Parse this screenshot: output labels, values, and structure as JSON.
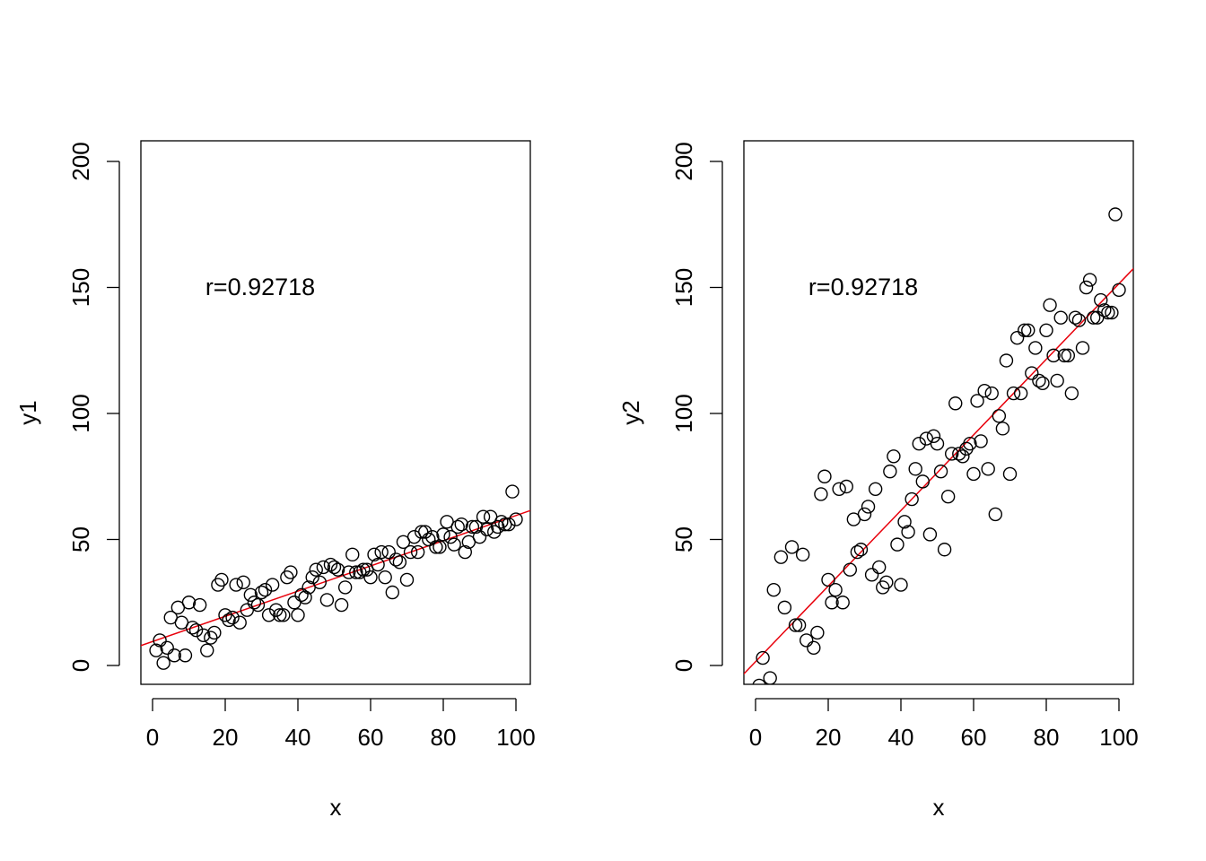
{
  "chart_data": [
    {
      "type": "scatter",
      "xlabel": "x",
      "ylabel": "y1",
      "xlim": [
        0,
        100
      ],
      "ylim": [
        0,
        200
      ],
      "xticks": [
        "0",
        "20",
        "40",
        "60",
        "80",
        "100"
      ],
      "yticks": [
        "0",
        "50",
        "100",
        "150",
        "200"
      ],
      "annotation": "r=0.92718",
      "fit_line": {
        "intercept": 9.5,
        "slope": 0.5,
        "color": "#e8000b"
      },
      "marker": "open-circle",
      "points": {
        "x": [
          1,
          2,
          3,
          4,
          5,
          6,
          7,
          8,
          9,
          10,
          11,
          12,
          13,
          14,
          15,
          16,
          17,
          18,
          19,
          20,
          21,
          22,
          23,
          24,
          25,
          26,
          27,
          28,
          29,
          30,
          31,
          32,
          33,
          34,
          35,
          36,
          37,
          38,
          39,
          40,
          41,
          42,
          43,
          44,
          45,
          46,
          47,
          48,
          49,
          50,
          51,
          52,
          53,
          54,
          55,
          56,
          57,
          58,
          59,
          60,
          61,
          62,
          63,
          64,
          65,
          66,
          67,
          68,
          69,
          70,
          71,
          72,
          73,
          74,
          75,
          76,
          77,
          78,
          79,
          80,
          81,
          82,
          83,
          84,
          85,
          86,
          87,
          88,
          89,
          90,
          91,
          92,
          93,
          94,
          95,
          96,
          97,
          98,
          99,
          100
        ],
        "y": [
          6,
          10,
          1,
          7,
          19,
          4,
          23,
          17,
          4,
          25,
          15,
          14,
          24,
          12,
          6,
          11,
          13,
          32,
          34,
          20,
          18,
          19,
          32,
          17,
          33,
          22,
          28,
          25,
          24,
          29,
          30,
          20,
          32,
          22,
          20,
          20,
          35,
          37,
          25,
          20,
          28,
          27,
          31,
          35,
          38,
          33,
          39,
          26,
          40,
          39,
          38,
          24,
          31,
          37,
          44,
          37,
          37,
          38,
          38,
          35,
          44,
          40,
          45,
          35,
          45,
          29,
          42,
          41,
          49,
          34,
          45,
          51,
          45,
          53,
          53,
          50,
          51,
          47,
          47,
          52,
          57,
          51,
          48,
          55,
          56,
          45,
          49,
          55,
          55,
          51,
          59,
          54,
          59,
          53,
          55,
          57,
          56,
          56,
          69,
          58
        ]
      }
    },
    {
      "type": "scatter",
      "xlabel": "x",
      "ylabel": "y2",
      "xlim": [
        0,
        100
      ],
      "ylim": [
        0,
        200
      ],
      "xticks": [
        "0",
        "20",
        "40",
        "60",
        "80",
        "100"
      ],
      "yticks": [
        "0",
        "50",
        "100",
        "150",
        "200"
      ],
      "annotation": "r=0.92718",
      "fit_line": {
        "intercept": 1.5,
        "slope": 1.5,
        "color": "#e8000b"
      },
      "marker": "open-circle",
      "points": {
        "x": [
          1,
          2,
          4,
          5,
          7,
          8,
          10,
          11,
          12,
          13,
          14,
          16,
          17,
          18,
          19,
          20,
          21,
          22,
          23,
          24,
          25,
          26,
          27,
          28,
          29,
          30,
          31,
          32,
          33,
          34,
          35,
          36,
          37,
          38,
          39,
          40,
          41,
          42,
          43,
          44,
          45,
          46,
          47,
          48,
          49,
          50,
          51,
          52,
          53,
          54,
          55,
          56,
          57,
          58,
          59,
          60,
          61,
          62,
          63,
          64,
          65,
          66,
          67,
          68,
          69,
          70,
          71,
          72,
          73,
          74,
          75,
          76,
          77,
          78,
          79,
          80,
          81,
          82,
          83,
          84,
          85,
          86,
          87,
          88,
          89,
          90,
          91,
          92,
          93,
          94,
          95,
          96,
          97,
          98,
          99,
          100
        ],
        "y": [
          -8,
          3,
          -5,
          30,
          43,
          23,
          47,
          16,
          16,
          44,
          10,
          7,
          13,
          68,
          75,
          34,
          25,
          30,
          70,
          25,
          71,
          38,
          58,
          45,
          46,
          60,
          63,
          36,
          70,
          39,
          31,
          33,
          77,
          83,
          48,
          32,
          57,
          53,
          66,
          78,
          88,
          73,
          90,
          52,
          91,
          88,
          77,
          46,
          67,
          84,
          104,
          84,
          83,
          86,
          88,
          76,
          105,
          89,
          109,
          78,
          108,
          60,
          99,
          94,
          121,
          76,
          108,
          130,
          108,
          133,
          133,
          116,
          126,
          113,
          112,
          133,
          143,
          123,
          113,
          138,
          123,
          123,
          108,
          138,
          137,
          126,
          150,
          153,
          138,
          138,
          145,
          141,
          140,
          140,
          179,
          149
        ]
      }
    }
  ]
}
